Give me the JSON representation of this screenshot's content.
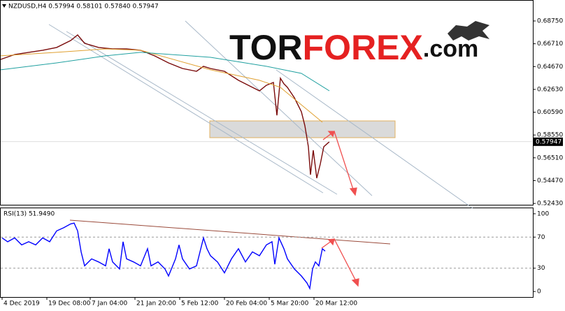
{
  "header": "NZDUSD,H4  0.57994 0.58101 0.57840 0.57947",
  "logo": {
    "part1": "TOR",
    "part2": "FOREX",
    "part3": ".com"
  },
  "chart_data": [
    {
      "type": "line",
      "xlim": [
        0,
        380
      ],
      "ylim": [
        0.5231,
        0.705
      ],
      "yticks": [
        {
          "value": 0.6875,
          "label": "0.68750"
        },
        {
          "value": 0.6671,
          "label": "0.66710"
        },
        {
          "value": 0.6467,
          "label": "0.64670"
        },
        {
          "value": 0.6263,
          "label": "0.62630"
        },
        {
          "value": 0.6059,
          "label": "0.60590"
        },
        {
          "value": 0.5855,
          "label": "0.58550"
        },
        {
          "value": 0.5651,
          "label": "0.56510"
        },
        {
          "value": 0.5447,
          "label": "0.54470"
        },
        {
          "value": 0.5243,
          "label": "0.52430"
        }
      ],
      "last_price": {
        "value": 0.57947,
        "label": "0.57947"
      },
      "series": [
        {
          "color": "#7a0b0b",
          "x": [
            0,
            10,
            20,
            30,
            40,
            50,
            55,
            60,
            70,
            80,
            90,
            100,
            110,
            120,
            130,
            140,
            145,
            150,
            160,
            170,
            180,
            185,
            190,
            195,
            197.5,
            200,
            202.5,
            205,
            210,
            215,
            217.5,
            220,
            221.5,
            223.5,
            226,
            228.5,
            231,
            235
          ],
          "values": [
            0.6531,
            0.6575,
            0.6594,
            0.6613,
            0.6638,
            0.67,
            0.675,
            0.6675,
            0.6638,
            0.6625,
            0.6625,
            0.6613,
            0.6563,
            0.65,
            0.645,
            0.6425,
            0.6469,
            0.645,
            0.6425,
            0.6344,
            0.6281,
            0.625,
            0.63,
            0.6325,
            0.6031,
            0.6363,
            0.6313,
            0.6281,
            0.6188,
            0.6063,
            0.5938,
            0.575,
            0.55,
            0.5719,
            0.5469,
            0.5594,
            0.575,
            0.57947
          ]
        },
        {
          "color": "#e0a030",
          "x": [
            0,
            40,
            75,
            100,
            150,
            185,
            200,
            215,
            230
          ],
          "values": [
            0.6563,
            0.6594,
            0.6625,
            0.6613,
            0.6438,
            0.6344,
            0.6281,
            0.6125,
            0.5969
          ]
        },
        {
          "color": "#20a0a0",
          "x": [
            0,
            40,
            75,
            100,
            150,
            190,
            215,
            235
          ],
          "values": [
            0.6438,
            0.65,
            0.6563,
            0.6594,
            0.655,
            0.6469,
            0.6406,
            0.625
          ]
        }
      ]
    },
    {
      "type": "line",
      "label": "RSI(13) 51.9490",
      "xlim": [
        0,
        380
      ],
      "ylim": [
        -7.1,
        107.1
      ],
      "yticks": [
        100,
        70,
        30,
        0
      ],
      "levels": [
        70,
        30
      ],
      "xticks": [
        {
          "value": 1,
          "label": "4 Dec 2019"
        },
        {
          "value": 33,
          "label": "19 Dec 08:00"
        },
        {
          "value": 64,
          "label": "7 Jan 04:00"
        },
        {
          "value": 96,
          "label": "21 Jan 20:00"
        },
        {
          "value": 128,
          "label": "5 Feb 12:00"
        },
        {
          "value": 160,
          "label": "20 Feb 04:00"
        },
        {
          "value": 192,
          "label": "5 Mar 20:00"
        },
        {
          "value": 224,
          "label": "20 Mar 12:00"
        }
      ],
      "series": [
        {
          "color": "#0000ff",
          "x": [
            1,
            5,
            10,
            15,
            20,
            25,
            30,
            35,
            40,
            45,
            50,
            52.5,
            55,
            57.5,
            60,
            65,
            70,
            75,
            77.5,
            80,
            85,
            87.5,
            90,
            95,
            100,
            105,
            107.5,
            112.5,
            117.5,
            120,
            125,
            127.5,
            130,
            135,
            140,
            145,
            147.5,
            150,
            155,
            160,
            165,
            170,
            175,
            180,
            185,
            190,
            194,
            196,
            199,
            202.5,
            205,
            210,
            215,
            219,
            221,
            223,
            225,
            227.5,
            230,
            232
          ],
          "values": [
            69,
            64,
            69,
            60,
            64,
            60,
            69,
            64,
            78,
            82,
            87,
            88,
            78,
            51,
            33,
            42,
            38,
            33,
            55,
            38,
            29,
            64,
            42,
            38,
            33,
            55,
            33,
            38,
            29,
            20,
            42,
            60,
            42,
            29,
            33,
            69,
            55,
            46,
            38,
            24,
            42,
            55,
            38,
            51,
            46,
            60,
            64,
            35,
            69,
            55,
            42,
            29,
            20,
            11,
            4,
            29,
            38,
            33,
            55,
            51.949
          ]
        }
      ]
    }
  ]
}
